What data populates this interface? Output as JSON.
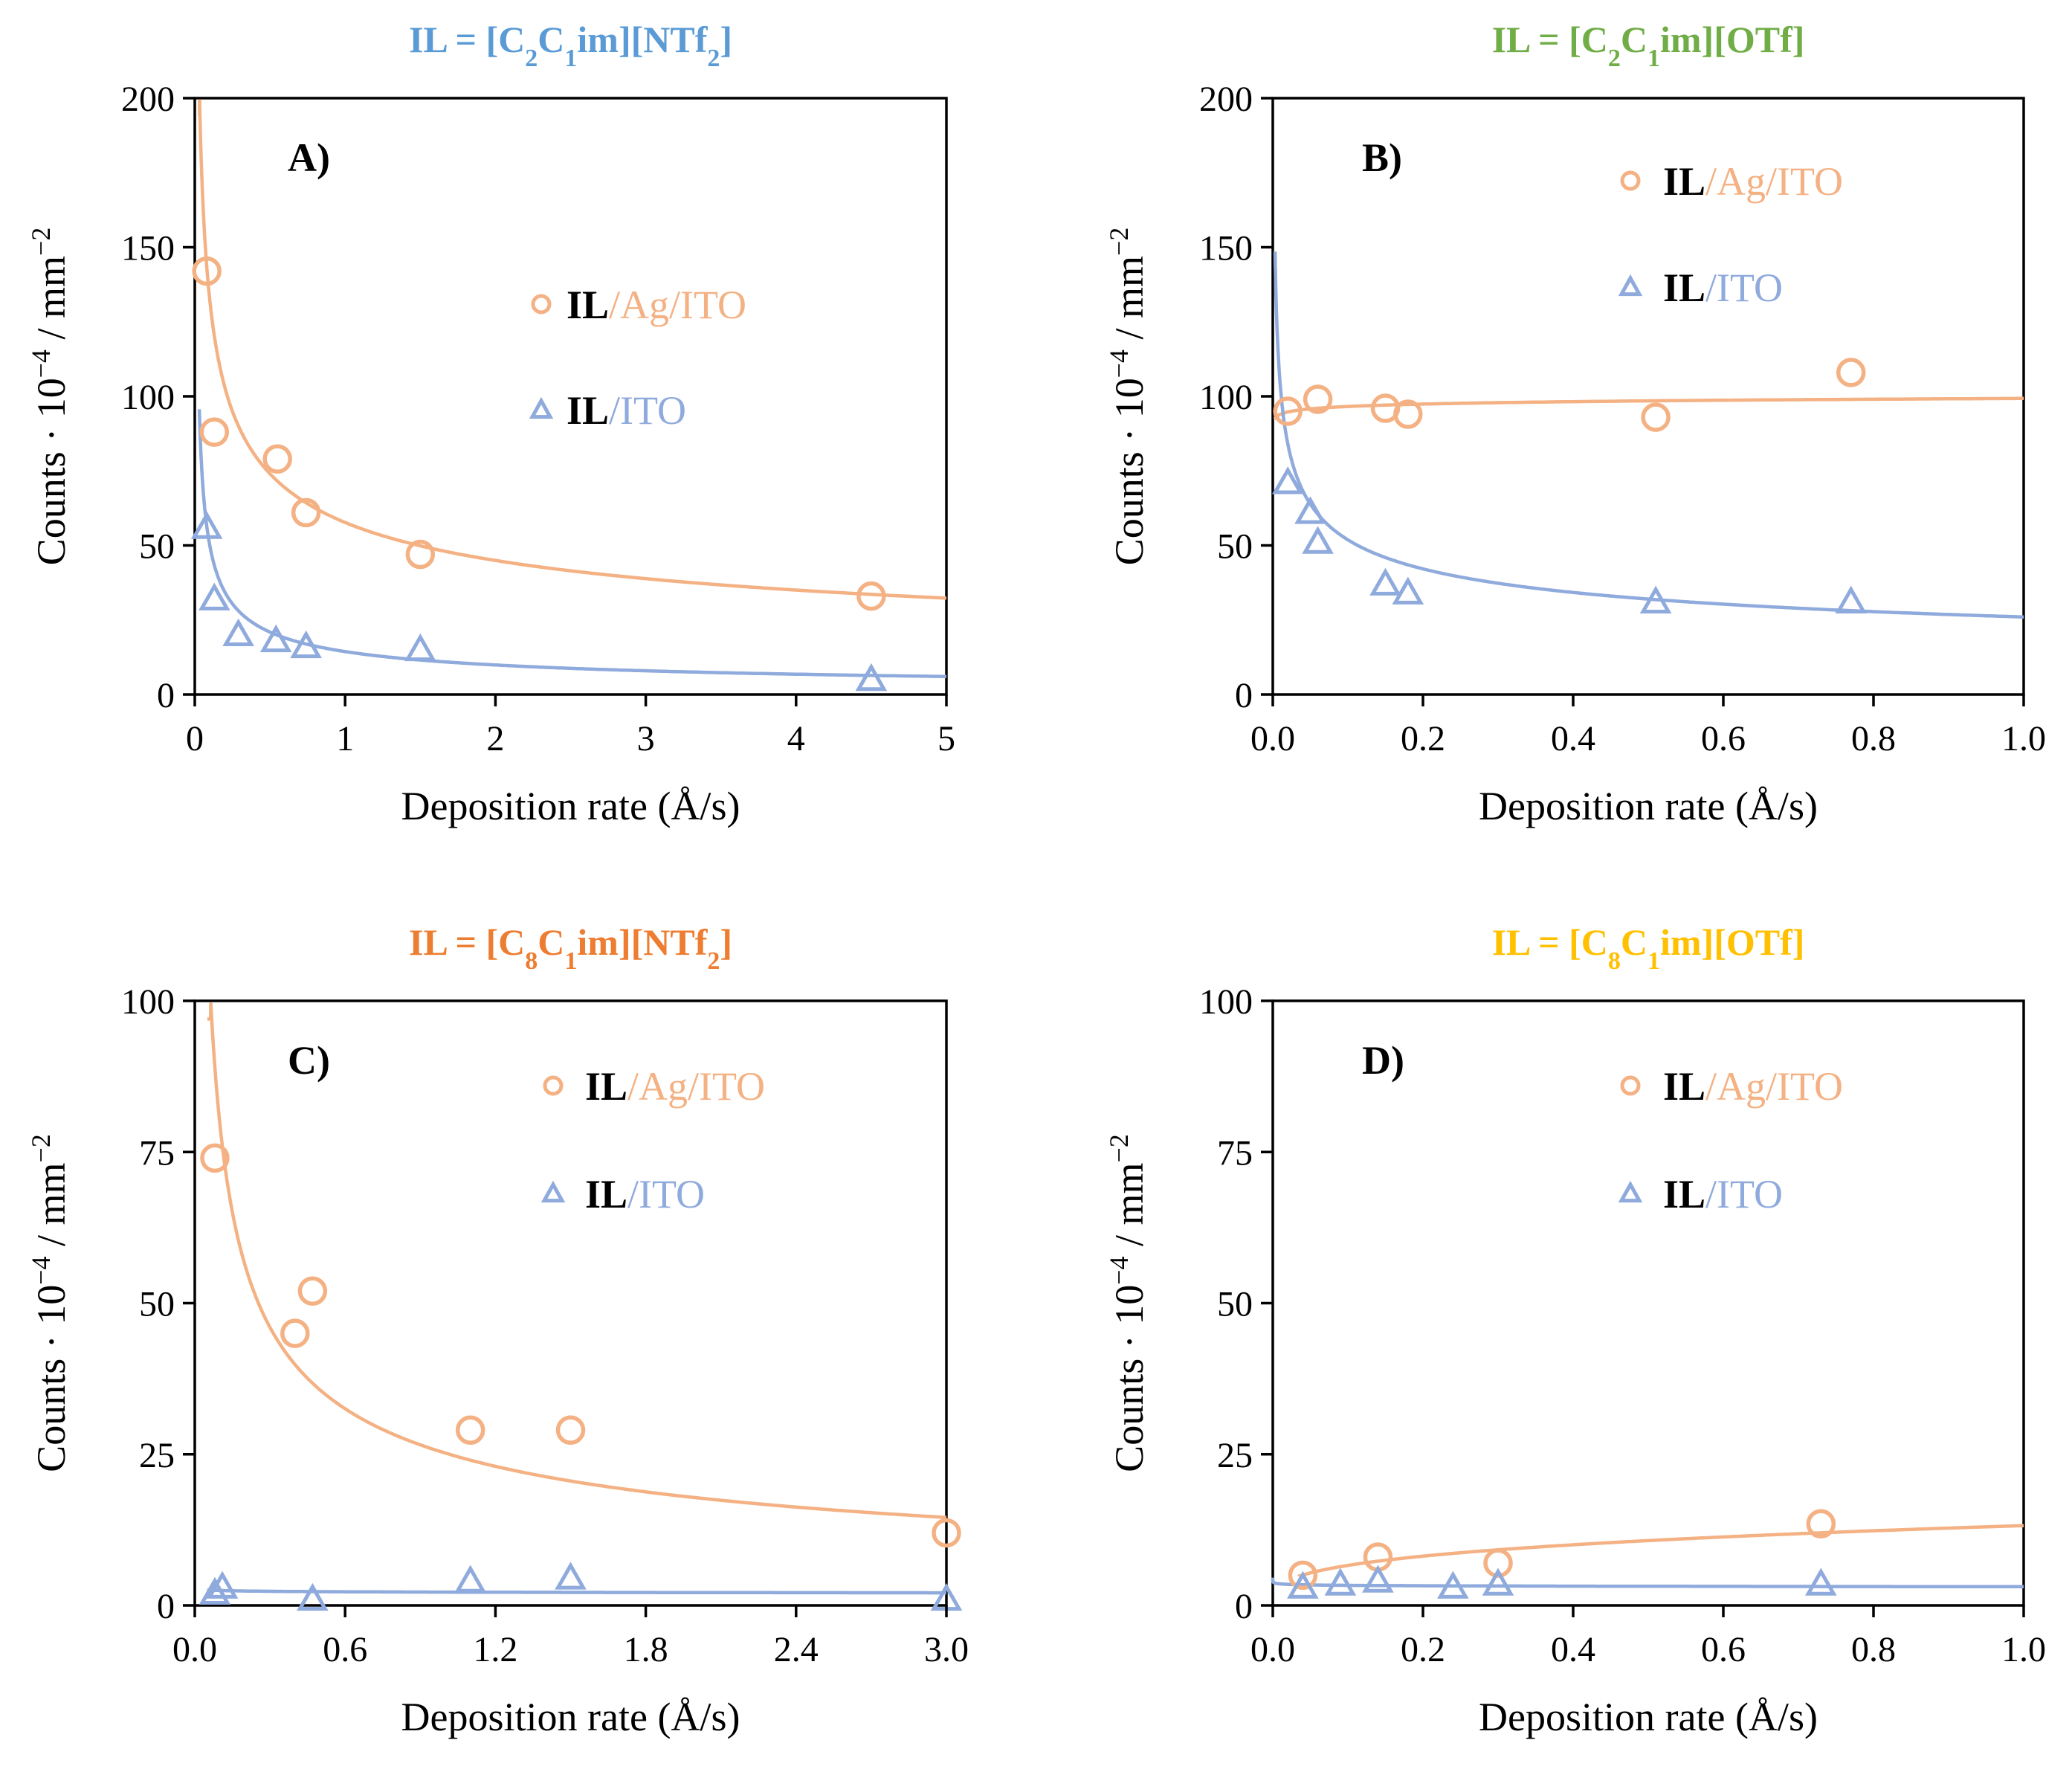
{
  "colors": {
    "ag_series": "#F4B183",
    "ito_series": "#8FAADC",
    "title_a": "#5B9BD5",
    "title_b": "#70AD47",
    "title_c": "#ED7D31",
    "title_d": "#FFC000",
    "axis": "#000000"
  },
  "ylabel_parts": {
    "main": "Counts · 10",
    "sup": "−4",
    "mid": " / mm",
    "sup2": "−2"
  },
  "chart_data": [
    {
      "id": "A",
      "type": "scatter",
      "panel_label": "A)",
      "title": {
        "prefix": "IL = [C",
        "sub1": "2",
        "mid1": "C",
        "sub2": "1",
        "mid2": "im][NTf",
        "sub3": "2",
        "suffix": "]"
      },
      "title_color_key": "title_a",
      "xlabel": "Deposition rate (Å/s)",
      "ylabel": "Counts · 10⁻⁴ / mm⁻²",
      "xlim": [
        0,
        5
      ],
      "ylim": [
        0,
        200
      ],
      "xticks": [
        0,
        1,
        2,
        3,
        4,
        5
      ],
      "xtick_labels": [
        "0",
        "1",
        "2",
        "3",
        "4",
        "5"
      ],
      "yticks": [
        0,
        50,
        100,
        150,
        200
      ],
      "ytick_labels": [
        "0",
        "50",
        "100",
        "150",
        "200"
      ],
      "legend": {
        "position": "right-middle",
        "il": "IL",
        "ag_rest": "/Ag/ITO",
        "ito_rest": "/ITO"
      },
      "series": [
        {
          "name": "IL/Ag/ITO",
          "marker": "circle",
          "color_key": "ag_series",
          "x": [
            0.08,
            0.13,
            0.55,
            0.74,
            1.5,
            4.5
          ],
          "y": [
            142,
            88,
            79,
            61,
            47,
            33
          ],
          "fit": {
            "a": 57.7,
            "b": -0.36,
            "x0": 0.03
          }
        },
        {
          "name": "IL/ITO",
          "marker": "triangle",
          "color_key": "ito_series",
          "x": [
            0.08,
            0.13,
            0.29,
            0.54,
            0.74,
            1.5,
            4.5
          ],
          "y": [
            56,
            32,
            20,
            18,
            16,
            15,
            5
          ],
          "fit": {
            "a": 14.4,
            "b": -0.54,
            "x0": 0.03
          }
        }
      ]
    },
    {
      "id": "B",
      "type": "scatter",
      "panel_label": "B)",
      "title": {
        "prefix": "IL = [C",
        "sub1": "2",
        "mid1": "C",
        "sub2": "1",
        "mid2": "im][OTf]",
        "sub3": "",
        "suffix": ""
      },
      "title_color_key": "title_b",
      "xlabel": "Deposition rate (Å/s)",
      "ylabel": "Counts · 10⁻⁴ / mm⁻²",
      "xlim": [
        0,
        1.0
      ],
      "ylim": [
        0,
        200
      ],
      "xticks": [
        0,
        0.2,
        0.4,
        0.6,
        0.8,
        1.0
      ],
      "xtick_labels": [
        "0.0",
        "0.2",
        "0.4",
        "0.6",
        "0.8",
        "1.0"
      ],
      "yticks": [
        0,
        50,
        100,
        150,
        200
      ],
      "ytick_labels": [
        "0",
        "50",
        "100",
        "150",
        "200"
      ],
      "legend": {
        "position": "top-right",
        "il": "IL",
        "ag_rest": "/Ag/ITO",
        "ito_rest": "/ITO"
      },
      "series": [
        {
          "name": "IL/Ag/ITO",
          "marker": "circle",
          "color_key": "ag_series",
          "x": [
            0.02,
            0.06,
            0.15,
            0.18,
            0.51,
            0.77
          ],
          "y": [
            95,
            99,
            96,
            94,
            93,
            108
          ],
          "fit": {
            "a": 99.3,
            "b": 0.012,
            "x0": 0.003
          }
        },
        {
          "name": "IL/ITO",
          "marker": "triangle",
          "color_key": "ito_series",
          "x": [
            0.02,
            0.05,
            0.06,
            0.15,
            0.18,
            0.51,
            0.77
          ],
          "y": [
            71,
            61,
            51,
            37,
            34,
            31,
            31
          ],
          "fit": {
            "a": 26.0,
            "b": -0.3,
            "x0": 0.003
          }
        }
      ]
    },
    {
      "id": "C",
      "type": "scatter",
      "panel_label": "C)",
      "title": {
        "prefix": "IL = [C",
        "sub1": "8",
        "mid1": "C",
        "sub2": "1",
        "mid2": "im][NTf",
        "sub3": "2",
        "suffix": "]"
      },
      "title_color_key": "title_c",
      "xlabel": "Deposition rate (Å/s)",
      "ylabel": "Counts · 10⁻⁴ / mm⁻²",
      "xlim": [
        0,
        3.0
      ],
      "ylim": [
        0,
        100
      ],
      "xticks": [
        0,
        0.6,
        1.2,
        1.8,
        2.4,
        3.0
      ],
      "xtick_labels": [
        "0.0",
        "0.6",
        "1.2",
        "1.8",
        "2.4",
        "3.0"
      ],
      "yticks": [
        0,
        25,
        50,
        75,
        100
      ],
      "ytick_labels": [
        "0",
        "25",
        "50",
        "75",
        "100"
      ],
      "legend": {
        "position": "top-right",
        "il": "IL",
        "ag_rest": "/Ag/ITO",
        "ito_rest": "/ITO"
      },
      "series": [
        {
          "name": "IL/Ag/ITO",
          "marker": "circle",
          "color_key": "ag_series",
          "x": [
            0.08,
            0.4,
            0.47,
            1.1,
            1.5,
            3.0
          ],
          "y": [
            74,
            45,
            52,
            29,
            29,
            12
          ],
          "fit": {
            "a": 25.2,
            "b": -0.5,
            "x0": 0.05
          }
        },
        {
          "name": "IL/ITO",
          "marker": "triangle",
          "color_key": "ito_series",
          "x": [
            0.08,
            0.11,
            0.47,
            1.1,
            1.5,
            3.0
          ],
          "y": [
            2,
            3,
            1,
            4,
            4.5,
            1
          ],
          "fit": {
            "a": 2.2,
            "b": -0.05,
            "x0": 0.05
          }
        }
      ]
    },
    {
      "id": "D",
      "type": "scatter",
      "panel_label": "D)",
      "title": {
        "prefix": "IL = [C",
        "sub1": "8",
        "mid1": "C",
        "sub2": "1",
        "mid2": "im][OTf]",
        "sub3": "",
        "suffix": ""
      },
      "title_color_key": "title_d",
      "xlabel": "Deposition rate (Å/s)",
      "ylabel": "Counts · 10⁻⁴ / mm⁻²",
      "xlim": [
        0,
        1.0
      ],
      "ylim": [
        0,
        100
      ],
      "xticks": [
        0,
        0.2,
        0.4,
        0.6,
        0.8,
        1.0
      ],
      "xtick_labels": [
        "0.0",
        "0.2",
        "0.4",
        "0.6",
        "0.8",
        "1.0"
      ],
      "yticks": [
        0,
        25,
        50,
        75,
        100
      ],
      "ytick_labels": [
        "0",
        "25",
        "50",
        "75",
        "100"
      ],
      "legend": {
        "position": "top-right",
        "il": "IL",
        "ag_rest": "/Ag/ITO",
        "ito_rest": "/ITO"
      },
      "series": [
        {
          "name": "IL/Ag/ITO",
          "marker": "circle",
          "color_key": "ag_series",
          "x": [
            0.04,
            0.14,
            0.3,
            0.73
          ],
          "y": [
            5,
            8,
            7,
            13.5
          ],
          "fit": {
            "a": 13.2,
            "b": 0.3,
            "x0": 0.035
          }
        },
        {
          "name": "IL/ITO",
          "marker": "triangle",
          "color_key": "ito_series",
          "x": [
            0.04,
            0.09,
            0.14,
            0.24,
            0.3,
            0.73
          ],
          "y": [
            3,
            3.5,
            4,
            3,
            3.5,
            3.5
          ],
          "fit": {
            "a": 3.1,
            "b": -0.03,
            "x0": 0.0
          }
        }
      ]
    }
  ]
}
